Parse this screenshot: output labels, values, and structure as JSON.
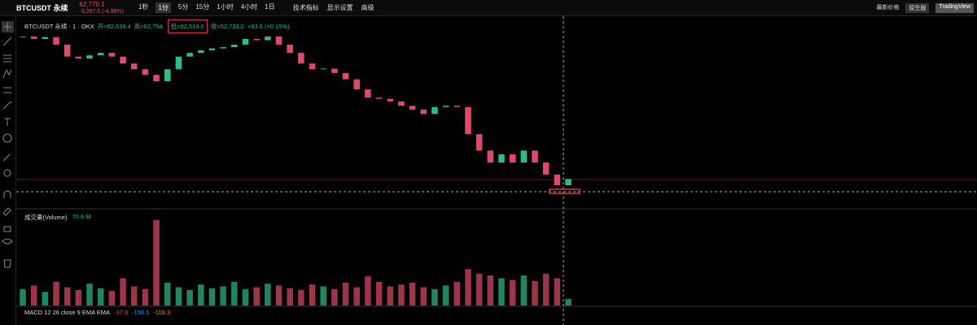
{
  "header": {
    "symbol": "BTCUSDT 永续",
    "price": "62,770.1",
    "change": "-3,287.6 (-4.98%)",
    "intervals": [
      "1秒",
      "1分",
      "5分",
      "15分",
      "1小时",
      "4小时",
      "1日"
    ],
    "tools": [
      "技术指标",
      "显示设置",
      "高级"
    ],
    "price_type": "最新价格",
    "views": [
      "原生版",
      "TradingView"
    ]
  },
  "legend": {
    "title": "BTCUSDT 永续 · 1 · OKX",
    "open": "开=62,639.4",
    "high": "高=62,754.",
    "low": "低=62,519.0",
    "close": "收=62,733.0",
    "delta": "+93.6 (+0.15%)"
  },
  "volume_legend": {
    "label": "成交量(Volume)",
    "value": "70.6 M"
  },
  "macd_legend": {
    "label": "MACD 12 26 close 9 EMA EMA",
    "values": [
      "-37.8",
      "-156.1",
      "-118.3"
    ]
  },
  "chart_data": {
    "type": "candlestick",
    "values": [
      62760,
      62756,
      62759,
      62747,
      62728,
      62725,
      62730,
      62734,
      62728,
      62717,
      62708,
      62699,
      62689,
      62708,
      62728,
      62734,
      62738,
      62741,
      62743,
      62747,
      62756,
      62754,
      62760,
      62747,
      62734,
      62717,
      62708,
      62709,
      62702,
      62692,
      62676,
      62663,
      62661,
      62657,
      62650,
      62644,
      62637,
      62648,
      62650,
      62648,
      62605,
      62579,
      62560,
      62573,
      62560,
      62579,
      62560,
      62541,
      62524,
      62534
    ],
    "ylim": [
      62488,
      62792
    ],
    "volumes": [
      180,
      220,
      150,
      260,
      200,
      170,
      240,
      190,
      160,
      300,
      210,
      180,
      940,
      250,
      200,
      170,
      230,
      190,
      210,
      260,
      180,
      200,
      240,
      220,
      190,
      170,
      230,
      210,
      180,
      250,
      200,
      320,
      260,
      210,
      230,
      250,
      200,
      180,
      220,
      260,
      400,
      350,
      330,
      300,
      280,
      330,
      270,
      350,
      300,
      70.6
    ],
    "vlim": [
      0,
      1000
    ],
    "up_color": "#2ebd85",
    "down_color": "#e04a68"
  }
}
